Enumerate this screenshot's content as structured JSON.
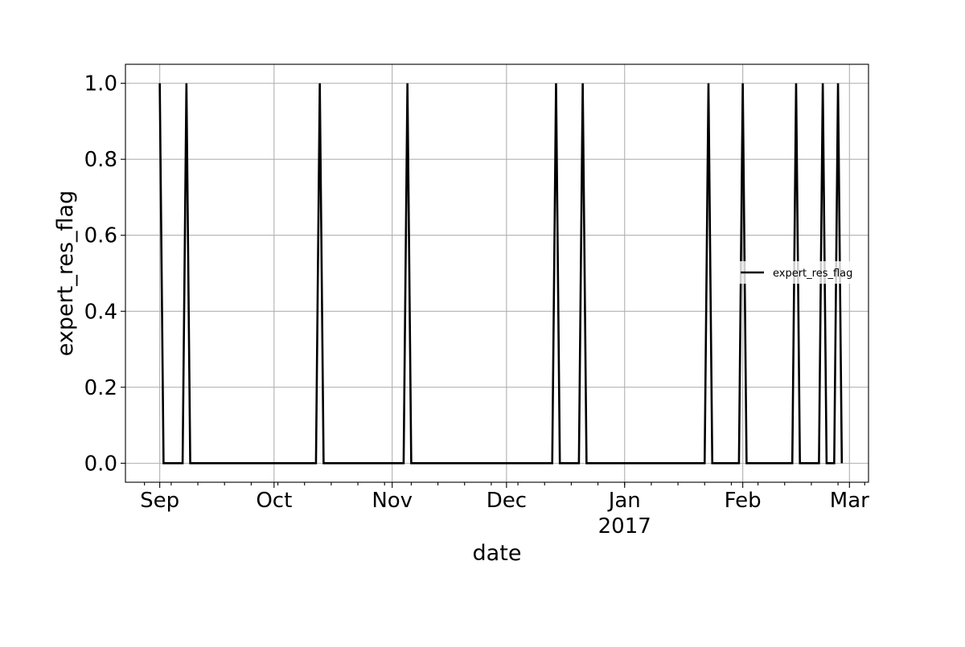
{
  "chart_data": {
    "type": "line",
    "xlabel": "date",
    "ylabel": "expert_res_flag",
    "xlim": [
      "2016-08-23",
      "2017-03-06"
    ],
    "ylim": [
      -0.05,
      1.05
    ],
    "grid": true,
    "legend_position": "center-right",
    "line_color": "#000000",
    "x_ticks": [
      {
        "date": "2016-09-01",
        "label": "Sep",
        "sublabel": ""
      },
      {
        "date": "2016-10-01",
        "label": "Oct",
        "sublabel": ""
      },
      {
        "date": "2016-11-01",
        "label": "Nov",
        "sublabel": ""
      },
      {
        "date": "2016-12-01",
        "label": "Dec",
        "sublabel": ""
      },
      {
        "date": "2017-01-01",
        "label": "Jan",
        "sublabel": "2017"
      },
      {
        "date": "2017-02-01",
        "label": "Feb",
        "sublabel": ""
      },
      {
        "date": "2017-03-01",
        "label": "Mar",
        "sublabel": ""
      }
    ],
    "y_ticks": [
      {
        "value": 0.0,
        "label": "0.0"
      },
      {
        "value": 0.2,
        "label": "0.2"
      },
      {
        "value": 0.4,
        "label": "0.4"
      },
      {
        "value": 0.6,
        "label": "0.6"
      },
      {
        "value": 0.8,
        "label": "0.8"
      },
      {
        "value": 1.0,
        "label": "1.0"
      }
    ],
    "series": [
      {
        "name": "expert_res_flag",
        "points": [
          {
            "x": "2016-09-01",
            "y": 1
          },
          {
            "x": "2016-09-02",
            "y": 0
          },
          {
            "x": "2016-09-07",
            "y": 0
          },
          {
            "x": "2016-09-08",
            "y": 1
          },
          {
            "x": "2016-09-09",
            "y": 0
          },
          {
            "x": "2016-10-12",
            "y": 0
          },
          {
            "x": "2016-10-13",
            "y": 1
          },
          {
            "x": "2016-10-14",
            "y": 0
          },
          {
            "x": "2016-11-04",
            "y": 0
          },
          {
            "x": "2016-11-05",
            "y": 1
          },
          {
            "x": "2016-11-06",
            "y": 0
          },
          {
            "x": "2016-12-13",
            "y": 0
          },
          {
            "x": "2016-12-14",
            "y": 1
          },
          {
            "x": "2016-12-15",
            "y": 0
          },
          {
            "x": "2016-12-20",
            "y": 0
          },
          {
            "x": "2016-12-21",
            "y": 1
          },
          {
            "x": "2016-12-22",
            "y": 0
          },
          {
            "x": "2017-01-22",
            "y": 0
          },
          {
            "x": "2017-01-23",
            "y": 1
          },
          {
            "x": "2017-01-24",
            "y": 0
          },
          {
            "x": "2017-01-31",
            "y": 0
          },
          {
            "x": "2017-02-01",
            "y": 1
          },
          {
            "x": "2017-02-02",
            "y": 0
          },
          {
            "x": "2017-02-14",
            "y": 0
          },
          {
            "x": "2017-02-15",
            "y": 1
          },
          {
            "x": "2017-02-16",
            "y": 0
          },
          {
            "x": "2017-02-21",
            "y": 0
          },
          {
            "x": "2017-02-22",
            "y": 1
          },
          {
            "x": "2017-02-23",
            "y": 0
          },
          {
            "x": "2017-02-25",
            "y": 0
          },
          {
            "x": "2017-02-26",
            "y": 1
          },
          {
            "x": "2017-02-27",
            "y": 0
          }
        ]
      }
    ]
  }
}
